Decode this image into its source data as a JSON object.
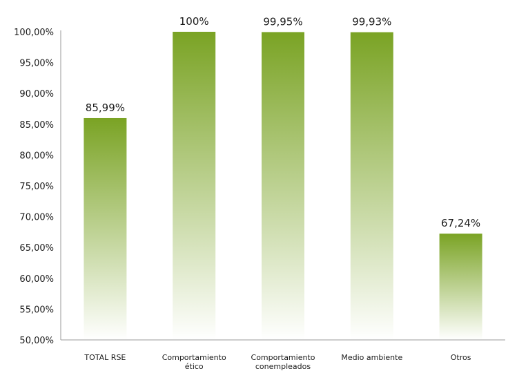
{
  "chart_data": {
    "type": "bar",
    "categories": [
      [
        "TOTAL RSE"
      ],
      [
        "Comportamiento",
        "ético"
      ],
      [
        "Comportamiento",
        "conempleados"
      ],
      [
        "Medio ambiente"
      ],
      [
        "Otros"
      ]
    ],
    "values": [
      85.99,
      100,
      99.95,
      99.93,
      67.24
    ],
    "data_labels": [
      "85,99%",
      "100%",
      "99,95%",
      "99,93%",
      "67,24%"
    ],
    "ylim": [
      50,
      100
    ],
    "yticks": [
      {
        "value": 50,
        "label": "50,00%"
      },
      {
        "value": 55,
        "label": "55,00%"
      },
      {
        "value": 60,
        "label": "60,00%"
      },
      {
        "value": 65,
        "label": "65,00%"
      },
      {
        "value": 70,
        "label": "70,00%"
      },
      {
        "value": 75,
        "label": "75,00%"
      },
      {
        "value": 80,
        "label": "80,00%"
      },
      {
        "value": 85,
        "label": "85,00%"
      },
      {
        "value": 90,
        "label": "90,00%"
      },
      {
        "value": 95,
        "label": "95,00%"
      },
      {
        "value": 100,
        "label": "100,00%"
      }
    ],
    "grid": false,
    "legend": "none",
    "colors": {
      "bar_top": "#7aa324",
      "bar_bottom": "#ffffff",
      "axis": "#999999",
      "text": "#1a1a1a"
    }
  }
}
